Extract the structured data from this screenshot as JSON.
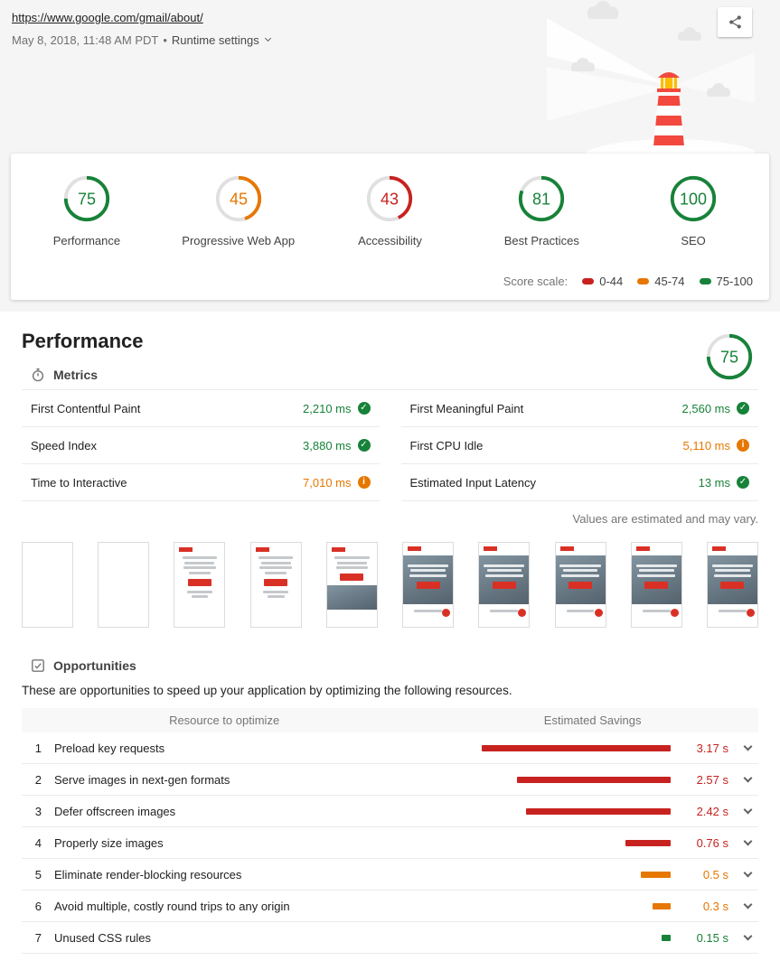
{
  "header": {
    "url": "https://www.google.com/gmail/about/",
    "timestamp": "May 8, 2018, 11:48 AM PDT",
    "separator": "•",
    "runtime_settings_label": "Runtime settings"
  },
  "colors": {
    "pass": "#178239",
    "average": "#e67700",
    "fail": "#c7221f"
  },
  "rating_icons": {
    "pass": "✓",
    "average": "i"
  },
  "icons": [
    "share-icon",
    "chevron-down-icon",
    "timer-icon",
    "opportunities-icon",
    "lighthouse-illustration"
  ],
  "scores": [
    {
      "label": "Performance",
      "value": 75,
      "rating": "pass"
    },
    {
      "label": "Progressive Web App",
      "value": 45,
      "rating": "average"
    },
    {
      "label": "Accessibility",
      "value": 43,
      "rating": "fail"
    },
    {
      "label": "Best Practices",
      "value": 81,
      "rating": "pass"
    },
    {
      "label": "SEO",
      "value": 100,
      "rating": "pass"
    }
  ],
  "score_scale": {
    "label": "Score scale:",
    "ranges": [
      {
        "label": "0-44",
        "rating": "fail"
      },
      {
        "label": "45-74",
        "rating": "average"
      },
      {
        "label": "75-100",
        "rating": "pass"
      }
    ]
  },
  "performance": {
    "title": "Performance",
    "score": 75,
    "score_rating": "pass",
    "metrics_title": "Metrics",
    "metrics": [
      {
        "name": "First Contentful Paint",
        "value": "2,210 ms",
        "rating": "pass"
      },
      {
        "name": "First Meaningful Paint",
        "value": "2,560 ms",
        "rating": "pass"
      },
      {
        "name": "Speed Index",
        "value": "3,880 ms",
        "rating": "pass"
      },
      {
        "name": "First CPU Idle",
        "value": "5,110 ms",
        "rating": "average"
      },
      {
        "name": "Time to Interactive",
        "value": "7,010 ms",
        "rating": "average"
      },
      {
        "name": "Estimated Input Latency",
        "value": "13 ms",
        "rating": "pass"
      }
    ],
    "disclaimer": "Values are estimated and may vary.",
    "filmstrip": [
      "blank",
      "blank",
      "text",
      "text",
      "text-image",
      "image",
      "image",
      "image",
      "image",
      "image"
    ]
  },
  "opportunities": {
    "title": "Opportunities",
    "description": "These are opportunities to speed up your application by optimizing the following resources.",
    "col_resource": "Resource to optimize",
    "col_savings": "Estimated Savings",
    "items": [
      {
        "index": 1,
        "name": "Preload key requests",
        "savings": "3.17 s",
        "seconds": 3.17,
        "rating": "fail"
      },
      {
        "index": 2,
        "name": "Serve images in next-gen formats",
        "savings": "2.57 s",
        "seconds": 2.57,
        "rating": "fail"
      },
      {
        "index": 3,
        "name": "Defer offscreen images",
        "savings": "2.42 s",
        "seconds": 2.42,
        "rating": "fail"
      },
      {
        "index": 4,
        "name": "Properly size images",
        "savings": "0.76 s",
        "seconds": 0.76,
        "rating": "fail"
      },
      {
        "index": 5,
        "name": "Eliminate render-blocking resources",
        "savings": "0.5 s",
        "seconds": 0.5,
        "rating": "average"
      },
      {
        "index": 6,
        "name": "Avoid multiple, costly round trips to any origin",
        "savings": "0.3 s",
        "seconds": 0.3,
        "rating": "average"
      },
      {
        "index": 7,
        "name": "Unused CSS rules",
        "savings": "0.15 s",
        "seconds": 0.15,
        "rating": "pass"
      }
    ]
  }
}
